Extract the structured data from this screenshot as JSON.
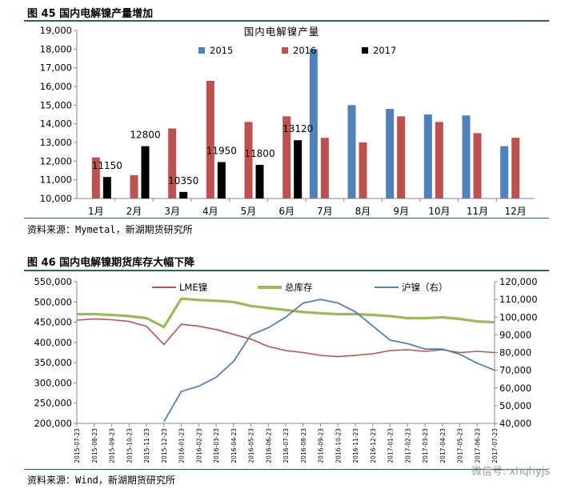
{
  "figure1": {
    "caption": "图 45 国内电解镍产量增加",
    "source": "资料来源：Mymetal，新湖期货研究所"
  },
  "figure2": {
    "caption": "图 46 国内电解镍期货库存大幅下降",
    "source": "资料来源：Wind，新湖期货研究所"
  },
  "watermark": "微信号: xhqhyjs",
  "colors": {
    "s2015": "#4f81bd",
    "s2016": "#c0504d",
    "s2017": "#000000",
    "lme": "#c0504d",
    "total": "#9bbb59",
    "shfe": "#4f81bd",
    "rule": "#2e6b3b"
  },
  "chart_data": [
    {
      "type": "bar",
      "title": "国内电解镍产量",
      "categories": [
        "1月",
        "2月",
        "3月",
        "4月",
        "5月",
        "6月",
        "7月",
        "8月",
        "9月",
        "10月",
        "11月",
        "12月"
      ],
      "series": [
        {
          "name": "2015",
          "values": [
            10000,
            10000,
            10000,
            10000,
            10000,
            10000,
            18000,
            15000,
            14800,
            14500,
            14450,
            12800
          ]
        },
        {
          "name": "2016",
          "values": [
            12200,
            11250,
            13750,
            16300,
            14100,
            14400,
            13250,
            13000,
            14400,
            14100,
            13500,
            13250
          ]
        },
        {
          "name": "2017",
          "values": [
            11150,
            12800,
            10350,
            11950,
            11800,
            13120,
            null,
            null,
            null,
            null,
            null,
            null
          ]
        }
      ],
      "data_labels_2017": [
        "11150",
        "12800",
        "10350",
        "11950",
        "11800",
        "13120"
      ],
      "ylim": [
        10000,
        19000
      ],
      "yticks": [
        "10,000",
        "11,000",
        "12,000",
        "13,000",
        "14,000",
        "15,000",
        "16,000",
        "17,000",
        "18,000",
        "19,000"
      ],
      "legend": [
        "2015",
        "2016",
        "2017"
      ]
    },
    {
      "type": "line",
      "title": "",
      "series_labels": [
        "LME镍",
        "总库存",
        "沪镍（右）"
      ],
      "x_ticks": [
        "2015-07-23",
        "2015-08-23",
        "2015-09-23",
        "2015-10-23",
        "2015-11-23",
        "2015-12-23",
        "2016-01-23",
        "2016-02-23",
        "2016-03-23",
        "2016-04-23",
        "2016-05-23",
        "2016-06-23",
        "2016-07-23",
        "2016-08-23",
        "2016-09-23",
        "2016-10-23",
        "2016-11-23",
        "2016-12-23",
        "2017-01-23",
        "2017-02-23",
        "2017-03-23",
        "2017-04-23",
        "2017-05-23",
        "2017-06-23",
        "2017-07-23"
      ],
      "ylim_left": [
        200000,
        550000
      ],
      "yticks_left": [
        "200,000",
        "250,000",
        "300,000",
        "350,000",
        "400,000",
        "450,000",
        "500,000",
        "550,000"
      ],
      "ylim_right": [
        40000,
        120000
      ],
      "yticks_right": [
        "40,000",
        "50,000",
        "60,000",
        "70,000",
        "80,000",
        "90,000",
        "100,000",
        "110,000",
        "120,000"
      ],
      "series": [
        {
          "name": "LME镍",
          "axis": "left",
          "values": [
            455000,
            458000,
            456000,
            452000,
            440000,
            395000,
            445000,
            440000,
            432000,
            420000,
            408000,
            390000,
            380000,
            375000,
            368000,
            365000,
            368000,
            372000,
            380000,
            382000,
            378000,
            382000,
            375000,
            378000,
            375000
          ]
        },
        {
          "name": "总库存",
          "axis": "left",
          "values": [
            470000,
            470000,
            468000,
            465000,
            460000,
            438000,
            508000,
            505000,
            503000,
            500000,
            490000,
            485000,
            480000,
            475000,
            472000,
            470000,
            470000,
            468000,
            465000,
            460000,
            460000,
            462000,
            458000,
            452000,
            450000
          ]
        },
        {
          "name": "沪镍（右）",
          "axis": "right",
          "values": [
            null,
            null,
            null,
            null,
            null,
            41000,
            58000,
            61000,
            66000,
            75000,
            90000,
            94000,
            100000,
            108000,
            110000,
            108000,
            103000,
            95000,
            87000,
            85000,
            82000,
            82000,
            79000,
            74000,
            70000
          ]
        }
      ]
    }
  ]
}
